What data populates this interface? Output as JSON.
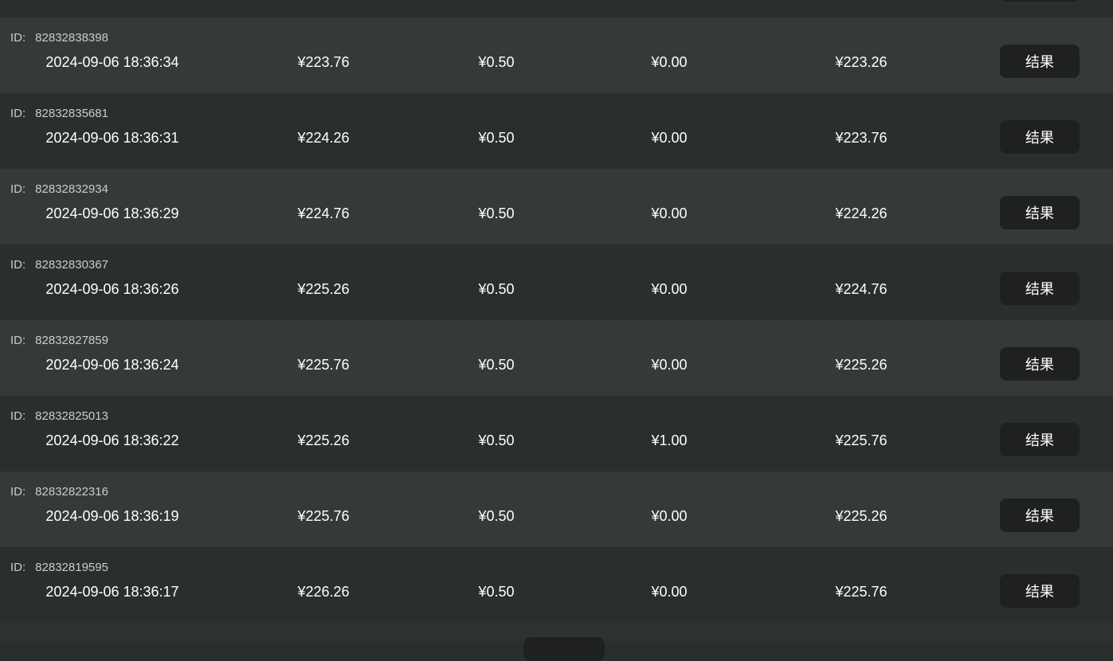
{
  "id_label": "ID:",
  "result_label": "结果",
  "rows": [
    {
      "id": "82832838398",
      "time": "2024-09-06  18:36:34",
      "c1": "¥223.76",
      "c2": "¥0.50",
      "c3": "¥0.00",
      "c4": "¥223.26"
    },
    {
      "id": "82832835681",
      "time": "2024-09-06  18:36:31",
      "c1": "¥224.26",
      "c2": "¥0.50",
      "c3": "¥0.00",
      "c4": "¥223.76"
    },
    {
      "id": "82832832934",
      "time": "2024-09-06  18:36:29",
      "c1": "¥224.76",
      "c2": "¥0.50",
      "c3": "¥0.00",
      "c4": "¥224.26"
    },
    {
      "id": "82832830367",
      "time": "2024-09-06  18:36:26",
      "c1": "¥225.26",
      "c2": "¥0.50",
      "c3": "¥0.00",
      "c4": "¥224.76"
    },
    {
      "id": "82832827859",
      "time": "2024-09-06  18:36:24",
      "c1": "¥225.76",
      "c2": "¥0.50",
      "c3": "¥0.00",
      "c4": "¥225.26"
    },
    {
      "id": "82832825013",
      "time": "2024-09-06  18:36:22",
      "c1": "¥225.26",
      "c2": "¥0.50",
      "c3": "¥1.00",
      "c4": "¥225.76"
    },
    {
      "id": "82832822316",
      "time": "2024-09-06  18:36:19",
      "c1": "¥225.76",
      "c2": "¥0.50",
      "c3": "¥0.00",
      "c4": "¥225.26"
    },
    {
      "id": "82832819595",
      "time": "2024-09-06  18:36:17",
      "c1": "¥226.26",
      "c2": "¥0.50",
      "c3": "¥0.00",
      "c4": "¥225.76"
    }
  ]
}
